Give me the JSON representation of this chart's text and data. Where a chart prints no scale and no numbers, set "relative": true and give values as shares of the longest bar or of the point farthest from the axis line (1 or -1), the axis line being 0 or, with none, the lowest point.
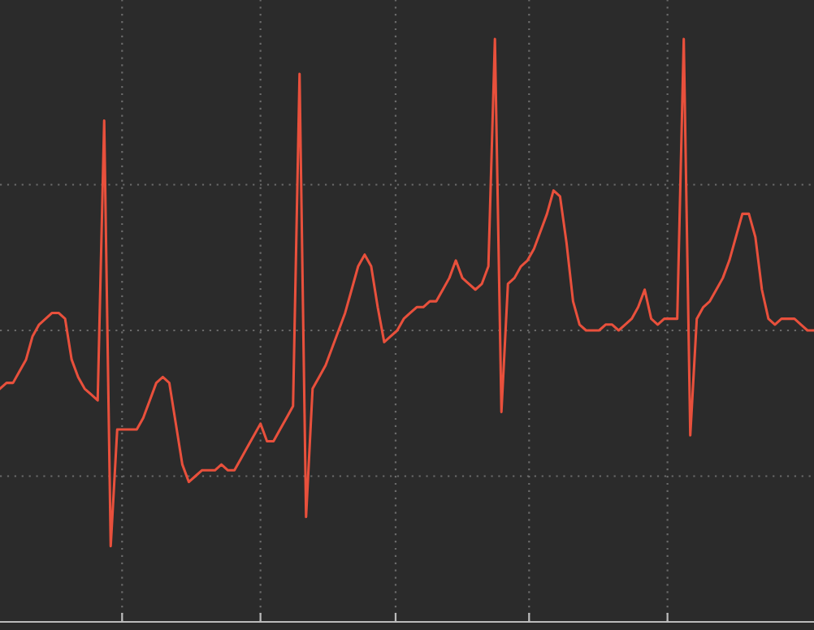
{
  "chart_data": {
    "type": "line",
    "relative": true,
    "grid": true,
    "marker": "none",
    "line_style": "solid",
    "categories": [
      null,
      null,
      null,
      null,
      null,
      null,
      null,
      null,
      null,
      null,
      null,
      null,
      null,
      null,
      null,
      null,
      null,
      null,
      null,
      null,
      null,
      null,
      null,
      null,
      null,
      null,
      null,
      null,
      null,
      null,
      null,
      null,
      null,
      null,
      null,
      null,
      null,
      null,
      null,
      null,
      null,
      null,
      null,
      null,
      null,
      null,
      null,
      null,
      null,
      null,
      null,
      null,
      null,
      null,
      null,
      null,
      null,
      null,
      null,
      null,
      null,
      null,
      null,
      null,
      null,
      null,
      null,
      null,
      null,
      null,
      null,
      null,
      null,
      null,
      null,
      null,
      null,
      null,
      null,
      null,
      null,
      null,
      null,
      null,
      null,
      null,
      null,
      null,
      null,
      null,
      null,
      null,
      null,
      null,
      null,
      null,
      null,
      null,
      null,
      null,
      null,
      null,
      null,
      null,
      null,
      null,
      null,
      null,
      null,
      null,
      null,
      null,
      null,
      null,
      null,
      null,
      null,
      null,
      null,
      null,
      null,
      null,
      null,
      null,
      null,
      null
    ],
    "series": [
      {
        "color": "#e8503c",
        "values": [
          0.4,
          0.41,
          0.41,
          0.43,
          0.45,
          0.49,
          0.51,
          0.52,
          0.53,
          0.53,
          0.52,
          0.45,
          0.42,
          0.4,
          0.39,
          0.38,
          0.86,
          0.13,
          0.33,
          0.33,
          0.33,
          0.33,
          0.35,
          0.38,
          0.41,
          0.42,
          0.41,
          0.34,
          0.27,
          0.24,
          0.25,
          0.26,
          0.26,
          0.26,
          0.27,
          0.26,
          0.26,
          0.28,
          0.3,
          0.32,
          0.34,
          0.31,
          0.31,
          0.33,
          0.35,
          0.37,
          0.94,
          0.18,
          0.4,
          0.42,
          0.44,
          0.47,
          0.5,
          0.53,
          0.57,
          0.61,
          0.63,
          0.61,
          0.54,
          0.48,
          0.49,
          0.5,
          0.52,
          0.53,
          0.54,
          0.54,
          0.55,
          0.55,
          0.57,
          0.59,
          0.62,
          0.59,
          0.58,
          0.57,
          0.58,
          0.61,
          1.0,
          0.36,
          0.58,
          0.59,
          0.61,
          0.62,
          0.64,
          0.67,
          0.7,
          0.74,
          0.73,
          0.65,
          0.55,
          0.51,
          0.5,
          0.5,
          0.5,
          0.51,
          0.51,
          0.5,
          0.51,
          0.52,
          0.54,
          0.57,
          0.52,
          0.51,
          0.52,
          0.52,
          0.52,
          1.0,
          0.32,
          0.52,
          0.54,
          0.55,
          0.57,
          0.59,
          0.62,
          0.66,
          0.7,
          0.7,
          0.66,
          0.57,
          0.52,
          0.51,
          0.52,
          0.52,
          0.52,
          0.51,
          0.5,
          0.5
        ]
      }
    ]
  }
}
